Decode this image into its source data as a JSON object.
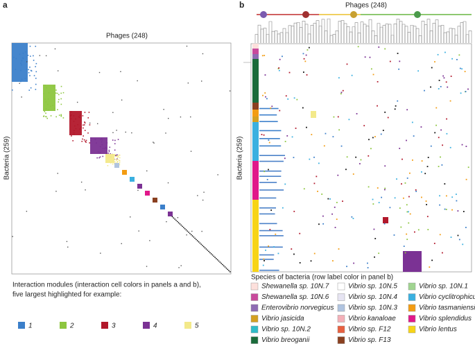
{
  "panel_a": {
    "letter": "a",
    "x_label": "Phages (248)",
    "y_label": "Bacteria (259)"
  },
  "panel_b": {
    "letter": "b",
    "x_label": "Phages (248)",
    "y_label": "Bacteria (259)"
  },
  "modules_legend": {
    "title": "Interaction modules (interaction cell colors in panels a and b),",
    "subtitle": "five largest highlighted for example:",
    "items": [
      {
        "label": "1",
        "color": "#3b7fca"
      },
      {
        "label": "2",
        "color": "#8dc63f"
      },
      {
        "label": "3",
        "color": "#b2182b"
      },
      {
        "label": "4",
        "color": "#7b3294"
      },
      {
        "label": "5",
        "color": "#f3e98a"
      }
    ]
  },
  "species_legend": {
    "title": "Species of bacteria (row label color in panel b)",
    "items": [
      {
        "label": "Shewanella sp. 10N.7",
        "color": "#fde0dc"
      },
      {
        "label": "Shewanella sp. 10N.6",
        "color": "#c84a9c"
      },
      {
        "label": "Enterovibrio norvegicus",
        "color": "#8e6bb3"
      },
      {
        "label": "Vibrio jasicida",
        "color": "#d4a020"
      },
      {
        "label": "Vibrio sp. 10N.2",
        "color": "#2fbcc8"
      },
      {
        "label": "Vibrio breoganii",
        "color": "#1a6b3a"
      },
      {
        "label": "Vibrio sp. 10N.5",
        "color": "#ffffff"
      },
      {
        "label": "Vibrio sp. 10N.4",
        "color": "#e6e4f2"
      },
      {
        "label": "Vibrio sp. 10N.3",
        "color": "#b0c4e0"
      },
      {
        "label": "Vibrio kanaloae",
        "color": "#f4b0b8"
      },
      {
        "label": "Vibrio sp. F12",
        "color": "#e86040"
      },
      {
        "label": "Vibrio sp. F13",
        "color": "#8a4020"
      },
      {
        "label": "Vibrio sp. 10N.1",
        "color": "#a0d490"
      },
      {
        "label": "Vibrio cyclitrophicus",
        "color": "#3ab0e0"
      },
      {
        "label": "Vibrio tasmaniensis",
        "color": "#f39c12"
      },
      {
        "label": "Vibrio splendidus",
        "color": "#e0188a"
      },
      {
        "label": "Vibrio lentus",
        "color": "#f7d417"
      }
    ]
  }
}
